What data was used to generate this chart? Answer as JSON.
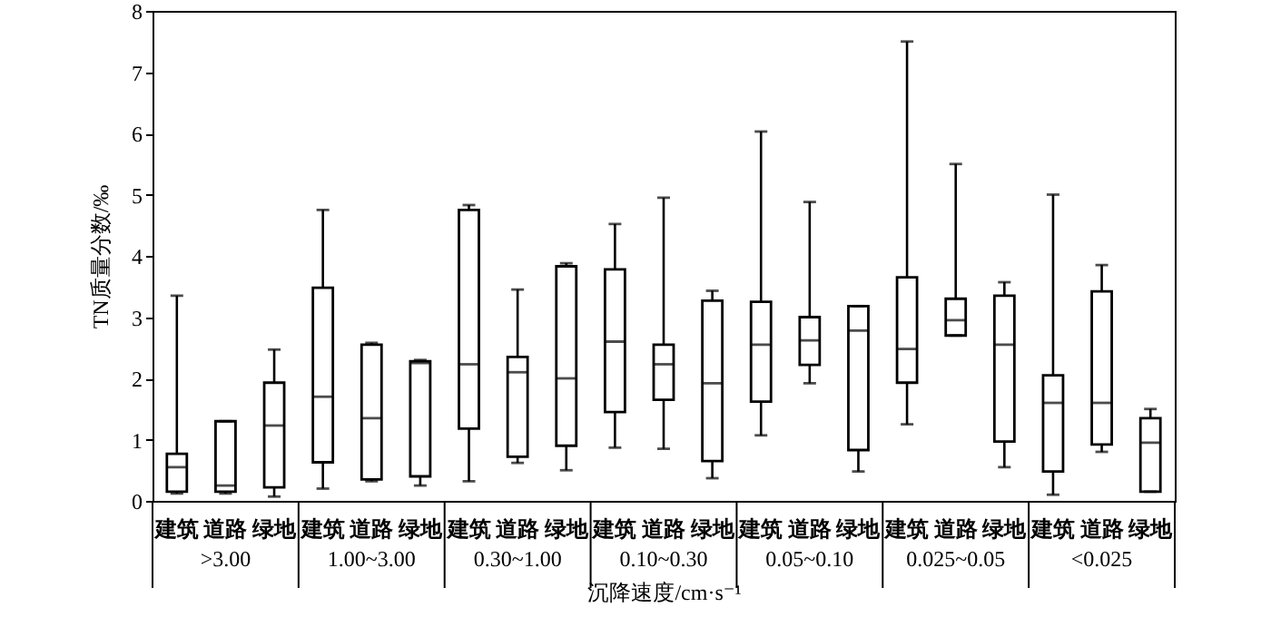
{
  "chart_data": {
    "type": "box",
    "xlabel": "沉降速度/cm·s⁻¹",
    "ylabel": "TN质量分数/‰",
    "categories": [
      "建筑",
      "道路",
      "绿地",
      "建筑",
      "道路",
      "绿地",
      "建筑",
      "道路",
      "绿地",
      "建筑",
      "道路",
      "绿地",
      "建筑",
      "道路",
      "绿地",
      "建筑",
      "道路",
      "绿地",
      "建筑",
      "道路",
      "绿地"
    ],
    "boxes": [
      {
        "low": 0.12,
        "q1": 0.15,
        "median": 0.55,
        "q3": 0.77,
        "high": 3.35
      },
      {
        "low": 0.12,
        "q1": 0.15,
        "median": 0.25,
        "q3": 1.3,
        "high": 1.3
      },
      {
        "low": 0.07,
        "q1": 0.22,
        "median": 1.23,
        "q3": 1.93,
        "high": 2.47
      },
      {
        "low": 0.2,
        "q1": 0.63,
        "median": 1.7,
        "q3": 3.48,
        "high": 4.75
      },
      {
        "low": 0.32,
        "q1": 0.35,
        "median": 1.35,
        "q3": 2.55,
        "high": 2.58
      },
      {
        "low": 0.25,
        "q1": 0.4,
        "median": 2.25,
        "q3": 2.28,
        "high": 2.3
      },
      {
        "low": 0.32,
        "q1": 1.18,
        "median": 2.23,
        "q3": 4.75,
        "high": 4.83
      },
      {
        "low": 0.62,
        "q1": 0.72,
        "median": 2.1,
        "q3": 2.35,
        "high": 3.45
      },
      {
        "low": 0.5,
        "q1": 0.9,
        "median": 2.0,
        "q3": 3.83,
        "high": 3.88
      },
      {
        "low": 0.87,
        "q1": 1.45,
        "median": 2.6,
        "q3": 3.78,
        "high": 4.52
      },
      {
        "low": 0.85,
        "q1": 1.65,
        "median": 2.23,
        "q3": 2.55,
        "high": 4.95
      },
      {
        "low": 0.37,
        "q1": 0.65,
        "median": 1.92,
        "q3": 3.27,
        "high": 3.43
      },
      {
        "low": 1.07,
        "q1": 1.62,
        "median": 2.55,
        "q3": 3.25,
        "high": 6.03
      },
      {
        "low": 1.92,
        "q1": 2.22,
        "median": 2.62,
        "q3": 3.0,
        "high": 4.88
      },
      {
        "low": 0.48,
        "q1": 0.83,
        "median": 2.78,
        "q3": 3.18,
        "high": 3.18
      },
      {
        "low": 1.25,
        "q1": 1.93,
        "median": 2.48,
        "q3": 3.65,
        "high": 7.5
      },
      {
        "low": 2.7,
        "q1": 2.7,
        "median": 2.95,
        "q3": 3.3,
        "high": 5.5
      },
      {
        "low": 0.55,
        "q1": 0.97,
        "median": 2.55,
        "q3": 3.35,
        "high": 3.57
      },
      {
        "low": 0.1,
        "q1": 0.48,
        "median": 1.6,
        "q3": 2.05,
        "high": 5.0
      },
      {
        "low": 0.8,
        "q1": 0.92,
        "median": 1.6,
        "q3": 3.42,
        "high": 3.85
      },
      {
        "low": 0.15,
        "q1": 0.15,
        "median": 0.95,
        "q3": 1.35,
        "high": 1.5
      }
    ],
    "annotations": [
      ">3.00",
      "1.00~3.00",
      "0.30~1.00",
      "0.10~0.30",
      "0.05~0.10",
      "0.025~0.05",
      "<0.025"
    ],
    "ylim": [
      0,
      8
    ],
    "yticks": [
      0,
      1,
      2,
      3,
      4,
      5,
      6,
      7,
      8
    ],
    "grid": false
  }
}
